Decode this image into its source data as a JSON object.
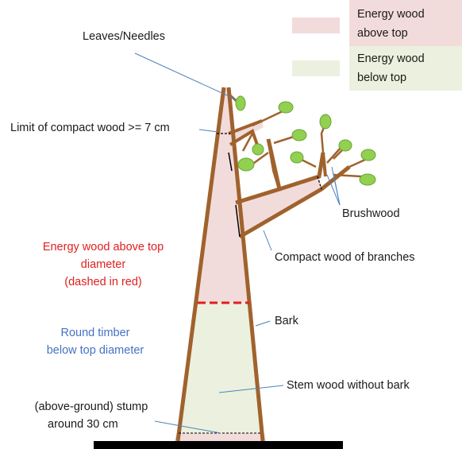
{
  "legend": {
    "above": {
      "label_line1": "Energy wood",
      "label_line2": "above top",
      "color": "#f2dcdb"
    },
    "below": {
      "label_line1": "Energy wood",
      "label_line2": "below top",
      "color": "#ebf1de"
    }
  },
  "labels": {
    "leaves": "Leaves/Needles",
    "limit": "Limit of compact wood >= 7 cm",
    "brushwood": "Brushwood",
    "compact_branches": "Compact wood of branches",
    "energy_above_1": "Energy wood above top",
    "energy_above_2": "diameter",
    "energy_above_3": "(dashed in red)",
    "round_timber_1": "Round timber",
    "round_timber_2": "below top diameter",
    "bark": "Bark",
    "stem_wood": "Stem wood without bark",
    "stump_1": "(above-ground) stump",
    "stump_2": "around 30 cm"
  },
  "colors": {
    "trunk": "#a0622d",
    "leaf": "#92d050",
    "leaf_stroke": "#6aa33a",
    "callout": "#4f81bd",
    "red_text": "#e02020",
    "blue_text": "#4472c4",
    "dashed_red": "#e02020",
    "ground": "#000000"
  }
}
